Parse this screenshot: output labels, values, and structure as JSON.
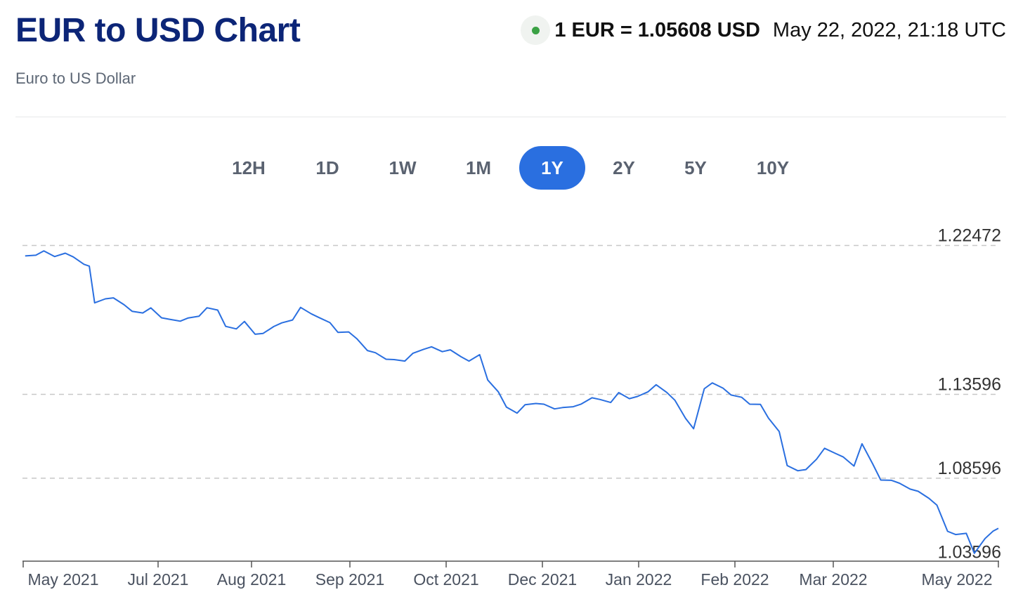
{
  "header": {
    "title": "EUR to USD Chart",
    "subtitle": "Euro to US Dollar",
    "rate": "1 EUR = 1.05608 USD",
    "timestamp": "May 22, 2022, 21:18 UTC",
    "live_indicator_color": "#3aa144"
  },
  "tabs": [
    {
      "label": "12H",
      "active": false
    },
    {
      "label": "1D",
      "active": false
    },
    {
      "label": "1W",
      "active": false
    },
    {
      "label": "1M",
      "active": false
    },
    {
      "label": "1Y",
      "active": true
    },
    {
      "label": "2Y",
      "active": false
    },
    {
      "label": "5Y",
      "active": false
    },
    {
      "label": "10Y",
      "active": false
    }
  ],
  "colors": {
    "title": "#0c2577",
    "accent": "#2a6fe0",
    "line": "#2a6fe0",
    "gridline": "#c8c8c8"
  },
  "chart_data": {
    "type": "line",
    "title": "",
    "xlabel": "",
    "ylabel": "",
    "x_ticks": [
      "May 2021",
      "Jul 2021",
      "Aug 2021",
      "Sep 2021",
      "Oct 2021",
      "Dec 2021",
      "Jan 2022",
      "Feb 2022",
      "Mar 2022",
      "May 2022"
    ],
    "y_ticks": [
      "1.22472",
      "1.13596",
      "1.08596",
      "1.03596"
    ],
    "ylim": [
      1.032,
      1.2247
    ],
    "grid": "horizontal dashed",
    "series": [
      {
        "name": "",
        "x": [
          "2021-05-23",
          "2021-05-27",
          "2021-05-30",
          "2021-06-03",
          "2021-06-07",
          "2021-06-10",
          "2021-06-14",
          "2021-06-16",
          "2021-06-18",
          "2021-06-22",
          "2021-06-25",
          "2021-06-29",
          "2021-07-02",
          "2021-07-06",
          "2021-07-09",
          "2021-07-13",
          "2021-07-16",
          "2021-07-20",
          "2021-07-23",
          "2021-07-27",
          "2021-07-30",
          "2021-08-03",
          "2021-08-06",
          "2021-08-10",
          "2021-08-13",
          "2021-08-17",
          "2021-08-20",
          "2021-08-24",
          "2021-08-27",
          "2021-08-31",
          "2021-09-03",
          "2021-09-07",
          "2021-09-10",
          "2021-09-14",
          "2021-09-17",
          "2021-09-21",
          "2021-09-24",
          "2021-09-28",
          "2021-10-01",
          "2021-10-05",
          "2021-10-08",
          "2021-10-12",
          "2021-10-15",
          "2021-10-19",
          "2021-10-22",
          "2021-10-26",
          "2021-10-29",
          "2021-11-02",
          "2021-11-05",
          "2021-11-09",
          "2021-11-12",
          "2021-11-16",
          "2021-11-19",
          "2021-11-23",
          "2021-11-26",
          "2021-11-30",
          "2021-12-03",
          "2021-12-07",
          "2021-12-10",
          "2021-12-14",
          "2021-12-17",
          "2021-12-21",
          "2021-12-24",
          "2021-12-28",
          "2021-12-31",
          "2022-01-04",
          "2022-01-07",
          "2022-01-11",
          "2022-01-14",
          "2022-01-18",
          "2022-01-21",
          "2022-01-25",
          "2022-01-28",
          "2022-02-01",
          "2022-02-04",
          "2022-02-08",
          "2022-02-11",
          "2022-02-15",
          "2022-02-18",
          "2022-02-22",
          "2022-02-25",
          "2022-03-01",
          "2022-03-04",
          "2022-03-08",
          "2022-03-11",
          "2022-03-15",
          "2022-03-18",
          "2022-03-22",
          "2022-03-25",
          "2022-03-29",
          "2022-04-01",
          "2022-04-05",
          "2022-04-08",
          "2022-04-12",
          "2022-04-15",
          "2022-04-19",
          "2022-04-22",
          "2022-04-26",
          "2022-04-29",
          "2022-05-03",
          "2022-05-06",
          "2022-05-10",
          "2022-05-13",
          "2022-05-17",
          "2022-05-20",
          "2022-05-22"
        ],
        "values": [
          1.2185,
          1.2189,
          1.2215,
          1.2181,
          1.2201,
          1.2179,
          1.2135,
          1.2124,
          1.1905,
          1.1929,
          1.1935,
          1.1894,
          1.1855,
          1.1845,
          1.1875,
          1.1816,
          1.1807,
          1.1796,
          1.1815,
          1.1825,
          1.1876,
          1.1862,
          1.1765,
          1.175,
          1.1794,
          1.1718,
          1.1723,
          1.1764,
          1.1786,
          1.1803,
          1.1878,
          1.184,
          1.1817,
          1.1787,
          1.1729,
          1.1732,
          1.1692,
          1.1621,
          1.1608,
          1.1569,
          1.1567,
          1.1558,
          1.1604,
          1.1628,
          1.1643,
          1.1614,
          1.1625,
          1.1584,
          1.1558,
          1.1596,
          1.1445,
          1.1374,
          1.1284,
          1.1248,
          1.1298,
          1.1305,
          1.1301,
          1.1273,
          1.1281,
          1.1286,
          1.1302,
          1.1339,
          1.1329,
          1.1311,
          1.137,
          1.1334,
          1.1347,
          1.1375,
          1.1417,
          1.1371,
          1.1325,
          1.1216,
          1.1155,
          1.1393,
          1.1428,
          1.1397,
          1.1356,
          1.1342,
          1.1301,
          1.13,
          1.1218,
          1.1138,
          1.0935,
          1.0904,
          1.0911,
          1.0973,
          1.1038,
          1.1008,
          1.0986,
          1.0932,
          1.1065,
          1.0945,
          1.0849,
          1.0847,
          1.083,
          1.0795,
          1.0782,
          1.074,
          1.0699,
          1.0543,
          1.0524,
          1.0531,
          1.0412,
          1.05,
          1.0544,
          1.0561
        ]
      }
    ]
  }
}
